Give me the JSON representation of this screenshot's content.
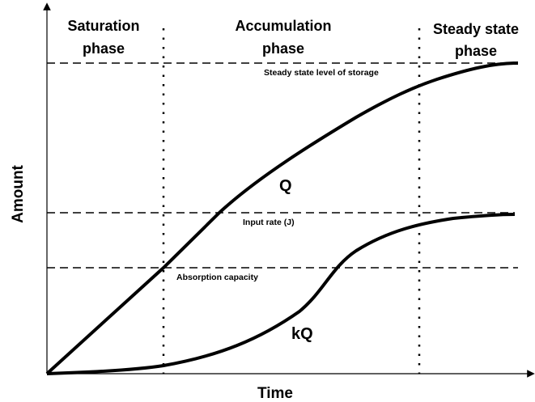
{
  "phases": [
    {
      "lines": [
        "Saturation",
        "phase"
      ]
    },
    {
      "lines": [
        "Accumulation",
        "phase"
      ]
    },
    {
      "lines": [
        "Steady state",
        "phase"
      ]
    }
  ],
  "levels": [
    "Steady state level of storage",
    "Input rate (J)",
    "Absorption capacity"
  ],
  "curves": [
    "Q",
    "kQ"
  ],
  "axes": {
    "y": "Amount",
    "x": "Time"
  }
}
